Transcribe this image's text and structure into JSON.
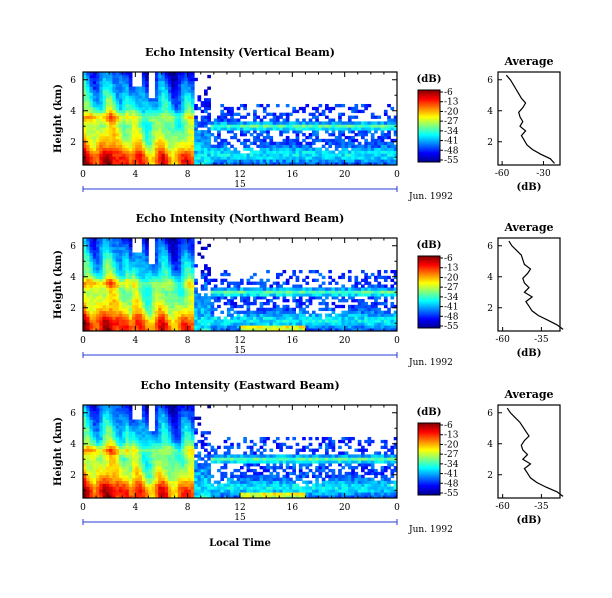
{
  "chart_data": [
    {
      "type": "heatmap",
      "title": "Echo Intensity (Vertical Beam)",
      "ylabel": "Height (km)",
      "x_ticks": [
        "0",
        "4",
        "8",
        "12",
        "16",
        "20",
        "0"
      ],
      "xlim": [
        0,
        24
      ],
      "y_ticks": [
        "2",
        "4",
        "6"
      ],
      "ylim": [
        0.5,
        6.5
      ],
      "day_label": "15",
      "month_label": "Jun. 1992",
      "colorbar": {
        "unit": "(dB)",
        "ticks": [
          "-6",
          "-13",
          "-20",
          "-27",
          "-34",
          "-41",
          "-48",
          "-55"
        ],
        "range": [
          -55,
          -6
        ]
      },
      "profile": {
        "title": "Average",
        "xlabel": "(dB)",
        "x_ticks": [
          "-30",
          "-60"
        ],
        "heights": [
          6.3,
          6.0,
          5.7,
          5.4,
          5.1,
          4.8,
          4.5,
          4.2,
          3.9,
          3.6,
          3.3,
          3.0,
          2.7,
          2.4,
          2.1,
          1.8,
          1.5,
          1.2,
          0.9,
          0.6
        ],
        "values": [
          -57,
          -54,
          -52,
          -50,
          -48,
          -46,
          -43,
          -45,
          -48,
          -47,
          -45,
          -47,
          -43,
          -46,
          -44,
          -42,
          -38,
          -32,
          -25,
          -22
        ]
      }
    },
    {
      "type": "heatmap",
      "title": "Echo Intensity (Northward Beam)",
      "ylabel": "Height (km)",
      "x_ticks": [
        "0",
        "4",
        "8",
        "12",
        "16",
        "20",
        "0"
      ],
      "xlim": [
        0,
        24
      ],
      "y_ticks": [
        "2",
        "4",
        "6"
      ],
      "ylim": [
        0.5,
        6.5
      ],
      "day_label": "15",
      "month_label": "Jun. 1992",
      "colorbar": {
        "unit": "(dB)",
        "ticks": [
          "-6",
          "-13",
          "-20",
          "-27",
          "-34",
          "-41",
          "-48",
          "-55"
        ],
        "range": [
          -55,
          -6
        ]
      },
      "profile": {
        "title": "Average",
        "xlabel": "(dB)",
        "x_ticks": [
          "-35",
          "-60"
        ],
        "heights": [
          6.3,
          6.0,
          5.7,
          5.4,
          5.1,
          4.8,
          4.5,
          4.2,
          3.9,
          3.6,
          3.3,
          3.0,
          2.7,
          2.4,
          2.1,
          1.8,
          1.5,
          1.2,
          0.9,
          0.6
        ],
        "values": [
          -56,
          -54,
          -51,
          -48,
          -47,
          -46,
          -42,
          -44,
          -47,
          -46,
          -43,
          -46,
          -41,
          -45,
          -43,
          -41,
          -37,
          -31,
          -25,
          -21
        ]
      }
    },
    {
      "type": "heatmap",
      "title": "Echo Intensity (Eastward Beam)",
      "ylabel": "Height (km)",
      "xlabel": "Local Time",
      "x_ticks": [
        "0",
        "4",
        "8",
        "12",
        "16",
        "20",
        "0"
      ],
      "xlim": [
        0,
        24
      ],
      "y_ticks": [
        "2",
        "4",
        "6"
      ],
      "ylim": [
        0.5,
        6.5
      ],
      "day_label": "15",
      "month_label": "Jun. 1992",
      "colorbar": {
        "unit": "(dB)",
        "ticks": [
          "-6",
          "-13",
          "-20",
          "-27",
          "-34",
          "-41",
          "-48",
          "-55"
        ],
        "range": [
          -55,
          -6
        ]
      },
      "profile": {
        "title": "Average",
        "xlabel": "(dB)",
        "x_ticks": [
          "-35",
          "-60"
        ],
        "heights": [
          6.3,
          6.0,
          5.7,
          5.4,
          5.1,
          4.8,
          4.5,
          4.2,
          3.9,
          3.6,
          3.3,
          3.0,
          2.7,
          2.4,
          2.1,
          1.8,
          1.5,
          1.2,
          0.9,
          0.6
        ],
        "values": [
          -57,
          -55,
          -52,
          -49,
          -47,
          -45,
          -43,
          -46,
          -48,
          -47,
          -44,
          -47,
          -42,
          -46,
          -44,
          -42,
          -38,
          -32,
          -25,
          -21
        ]
      }
    }
  ]
}
